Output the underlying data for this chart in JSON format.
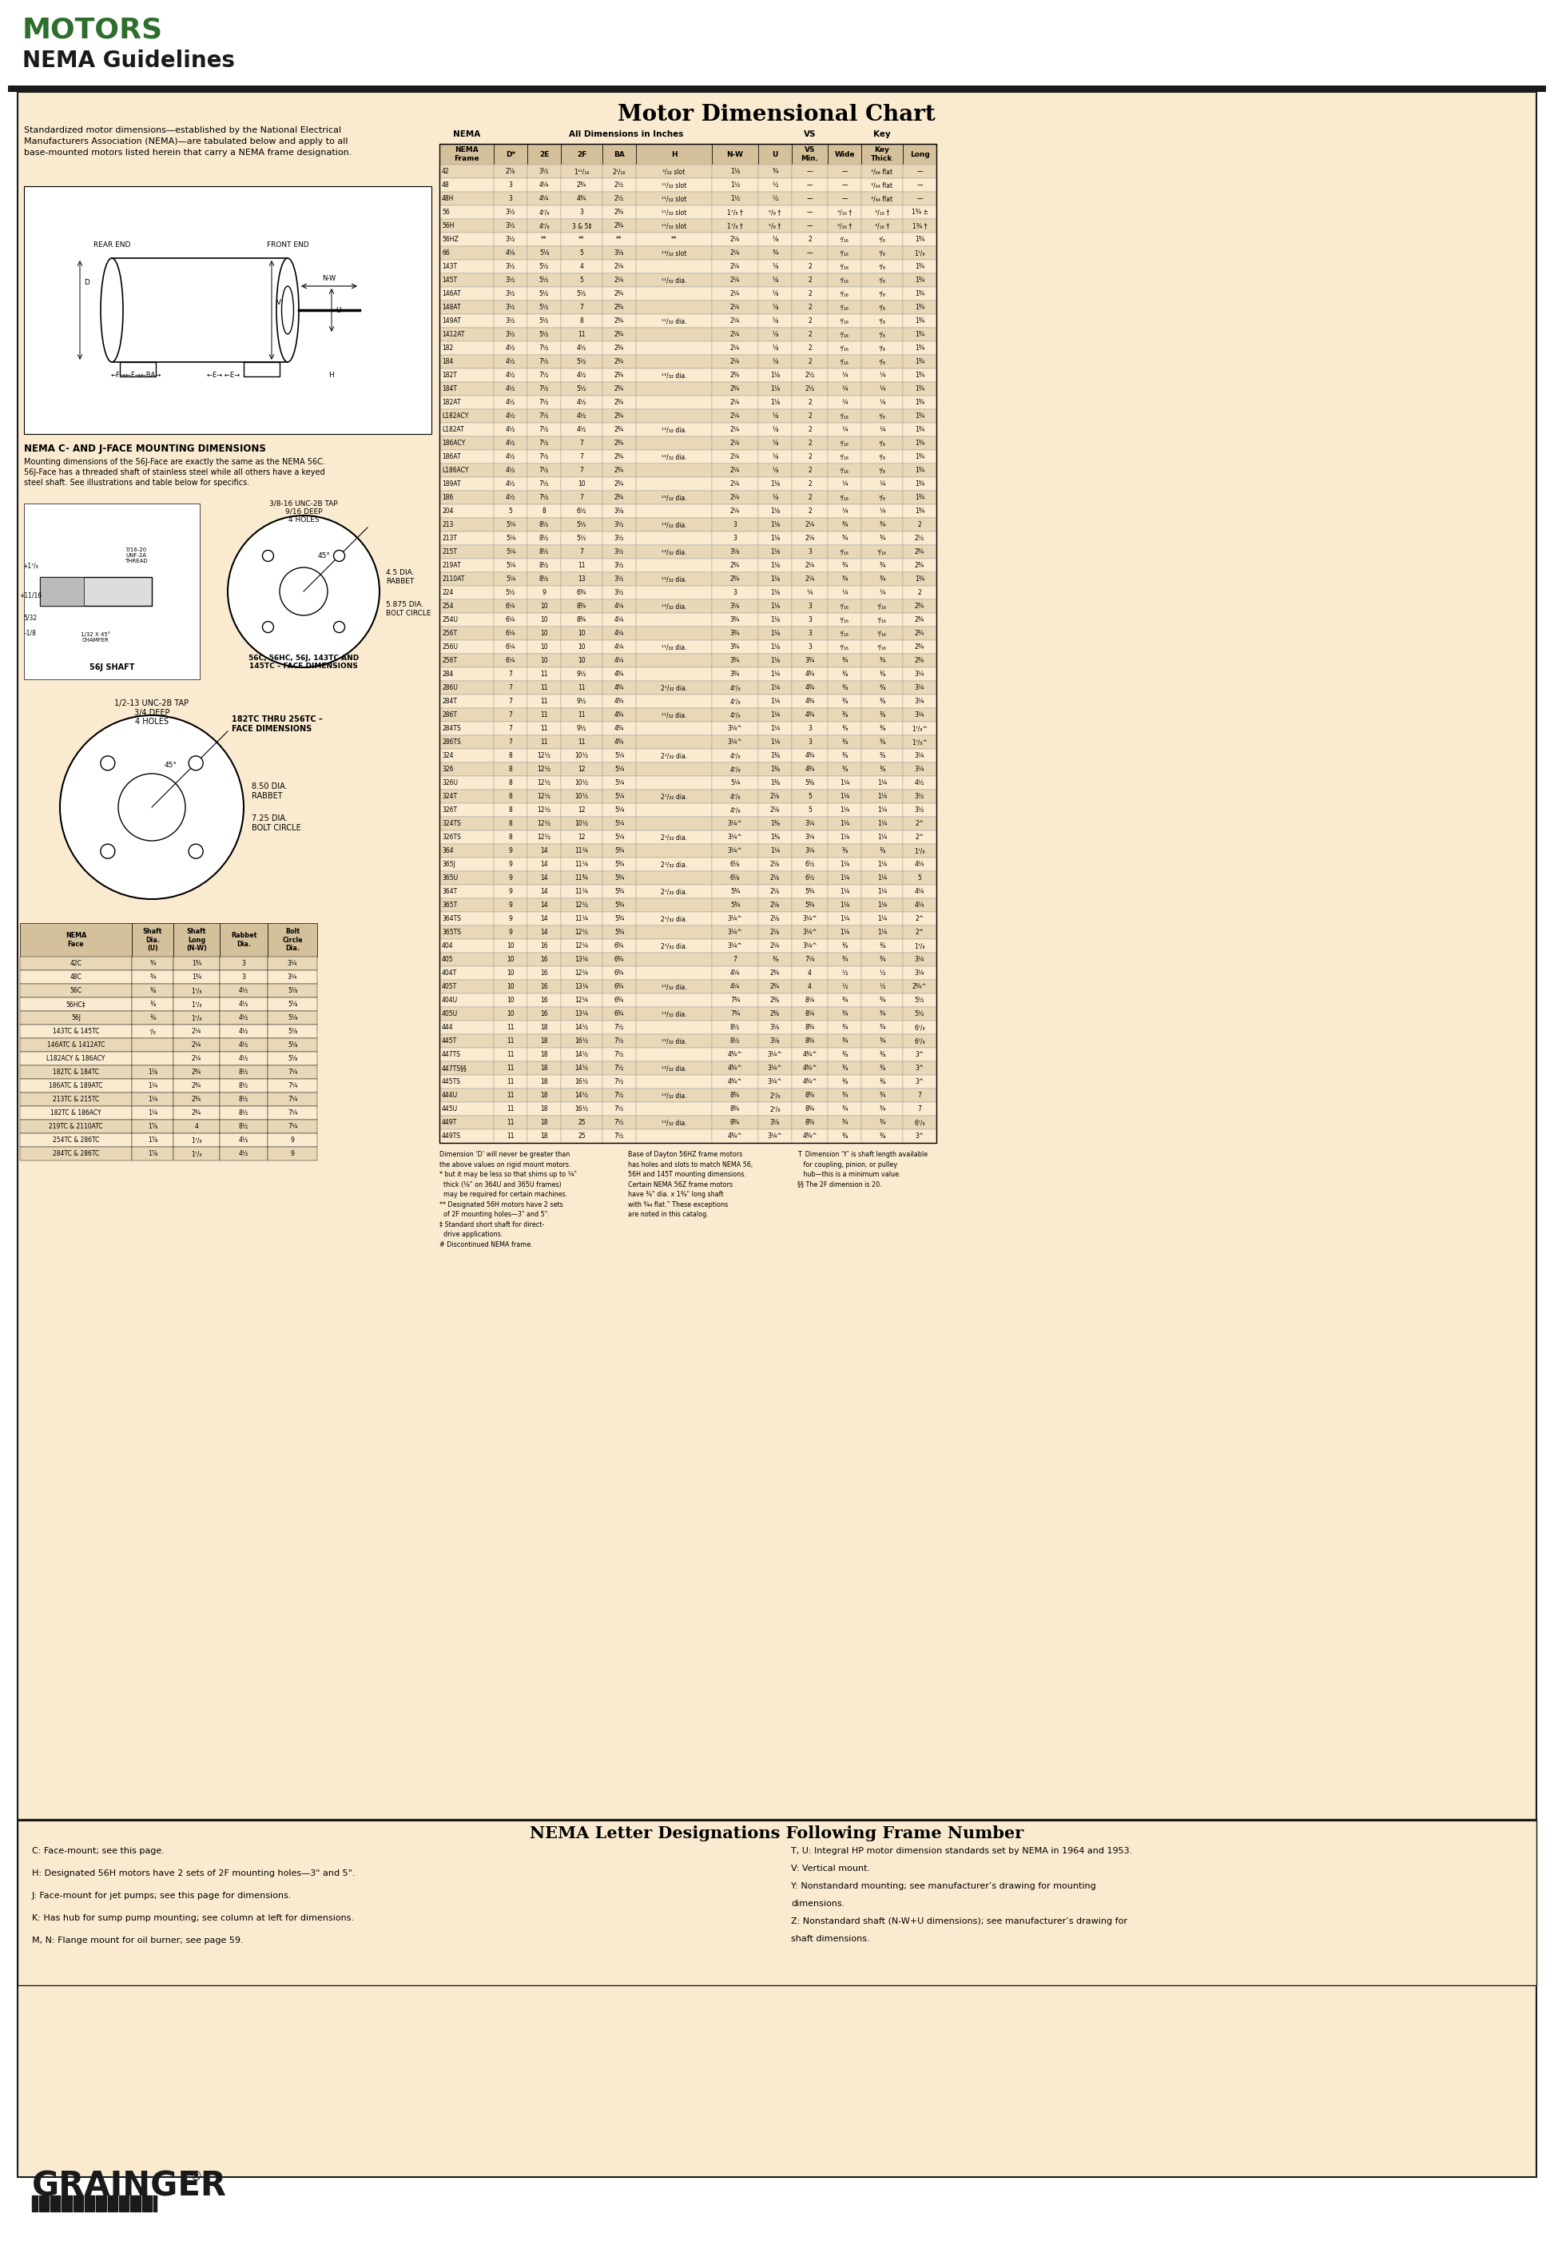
{
  "title_motors": "MOTORS",
  "title_nema": "NEMA Guidelines",
  "main_title": "Motor Dimensional Chart",
  "bg_color": "#faebd0",
  "header_bg_green": "#2d6e2d",
  "intro_text": "Standardized motor dimensions—established by the National Electrical\nManufacturers Association (NEMA)—are tabulated below and apply to all\nbase-mounted motors listed herein that carry a NEMA frame designation.",
  "nema_c_j_title": "NEMA C- AND J-FACE MOUNTING DIMENSIONS",
  "nema_c_j_text": "Mounting dimensions of the 56J-Face are exactly the same as the NEMA 56C.\n56J-Face has a threaded shaft of stainless steel while all others have a keyed\nsteel shaft. See illustrations and table below for specifics.",
  "face_dim_label": "56C, 56HC, 56J, 143TC AND\n145TC – FACE DIMENSIONS",
  "face_dim_label2": "182TC THRU 256TC –\nFACE DIMENSIONS",
  "table_rows": [
    [
      "42",
      "2⅞",
      "3½",
      "1¹¹/₁₆",
      "2¹/₁₆",
      "³/₃₂ slot",
      "1⅛",
      "¾",
      "—",
      "—",
      "³/₆₄ flat",
      "—"
    ],
    [
      "48",
      "3",
      "4¼",
      "2¾",
      "2½",
      "¹¹/₃₂ slot",
      "1½",
      "½",
      "—",
      "—",
      "³/₆₄ flat",
      "—"
    ],
    [
      "48H",
      "3",
      "4¼",
      "4¾",
      "2½",
      "¹¹/₃₂ slot",
      "1½",
      "½",
      "—",
      "—",
      "³/₆₄ flat",
      "—"
    ],
    [
      "56",
      "3½",
      "4⁷/₈",
      "3",
      "2¾",
      "¹¹/₃₂ slot",
      "1⁷/₈ †",
      "⁵/₈ †",
      "—",
      "³/₁₆ †",
      "³/₁₆ †",
      "1¾ ±"
    ],
    [
      "56H",
      "3½",
      "4⁷/₈",
      "3 & 5‡",
      "2¾",
      "¹¹/₃₂ slot",
      "1⁷/₈ †",
      "⁵/₈ †",
      "—",
      "³/₁₆ †",
      "³/₁₆ †",
      "1¾ †"
    ],
    [
      "56HZ",
      "3½",
      "**",
      "**",
      "**",
      "**",
      "2¼",
      "⅛",
      "2",
      "³/₁₆",
      "³/₈",
      "1¾"
    ],
    [
      "66",
      "4⅛",
      "5⅛",
      "5",
      "3⅛",
      "¹³/₃₂ slot",
      "2¼",
      "¾",
      "—",
      "³/₁₆",
      "³/₈",
      "1⁷/₈"
    ],
    [
      "143T",
      "3½",
      "5½",
      "4",
      "2¼",
      "",
      "2¼",
      "⅛",
      "2",
      "³/₁₆",
      "³/₈",
      "1¾"
    ],
    [
      "145T",
      "3½",
      "5½",
      "5",
      "2¼",
      "¹¹/₃₂ dia.",
      "2¼",
      "⅛",
      "2",
      "³/₁₆",
      "³/₈",
      "1¾"
    ],
    [
      "146AT",
      "3½",
      "5½",
      "5½",
      "2¾",
      "",
      "2¼",
      "⅛",
      "2",
      "³/₁₆",
      "³/₈",
      "1¾"
    ],
    [
      "148AT",
      "3½",
      "5½",
      "7",
      "2¾",
      "",
      "2¼",
      "⅛",
      "2",
      "³/₁₆",
      "³/₈",
      "1¾"
    ],
    [
      "149AT",
      "3½",
      "5½",
      "8",
      "2¾",
      "¹¹/₃₂ dia.",
      "2¼",
      "⅛",
      "2",
      "³/₁₆",
      "³/₈",
      "1¾"
    ],
    [
      "1412AT",
      "3½",
      "5½",
      "11",
      "2¾",
      "",
      "2¼",
      "⅛",
      "2",
      "³/₁₆",
      "³/₈",
      "1¾"
    ],
    [
      "182",
      "4½",
      "7½",
      "4½",
      "2¾",
      "",
      "2¼",
      "⅛",
      "2",
      "³/₁₆",
      "³/₈",
      "1¾"
    ],
    [
      "184",
      "4½",
      "7½",
      "5½",
      "2¾",
      "",
      "2¼",
      "⅛",
      "2",
      "³/₁₆",
      "³/₈",
      "1¾"
    ],
    [
      "182T",
      "4½",
      "7½",
      "4½",
      "2¾",
      "¹³/₃₂ dia.",
      "2¾",
      "1⅛",
      "2½",
      "¼",
      "¼",
      "1¾"
    ],
    [
      "184T",
      "4½",
      "7½",
      "5½",
      "2¾",
      "",
      "2¾",
      "1⅛",
      "2½",
      "¼",
      "¼",
      "1¾"
    ],
    [
      "182AT",
      "4½",
      "7½",
      "4½",
      "2¾",
      "",
      "2¼",
      "1⅛",
      "2",
      "¼",
      "¼",
      "1¾"
    ],
    [
      "L182ACY",
      "4½",
      "7½",
      "4½",
      "2¾",
      "",
      "2¼",
      "⅛",
      "2",
      "³/₁₆",
      "³/₈",
      "1¾"
    ],
    [
      "L182AT",
      "4½",
      "7½",
      "4½",
      "2¾",
      "¹³/₃₂ dia.",
      "2¼",
      "⅛",
      "2",
      "¼",
      "¼",
      "1¾"
    ],
    [
      "186ACY",
      "4½",
      "7½",
      "7",
      "2¾",
      "",
      "2¼",
      "⅛",
      "2",
      "³/₁₆",
      "³/₈",
      "1¾"
    ],
    [
      "186AT",
      "4½",
      "7½",
      "7",
      "2¾",
      "¹³/₃₂ dia.",
      "2¼",
      "⅛",
      "2",
      "³/₁₆",
      "³/₈",
      "1¾"
    ],
    [
      "L186ACY",
      "4½",
      "7½",
      "7",
      "2¾",
      "",
      "2¼",
      "⅛",
      "2",
      "³/₁₆",
      "³/₈",
      "1¾"
    ],
    [
      "189AT",
      "4½",
      "7½",
      "10",
      "2¾",
      "",
      "2¼",
      "1⅛",
      "2",
      "¼",
      "¼",
      "1¾"
    ],
    [
      "186",
      "4½",
      "7½",
      "7",
      "2¾",
      "¹³/₃₂ dia.",
      "2¼",
      "⅛",
      "2",
      "³/₁₆",
      "³/₈",
      "1¾"
    ],
    [
      "204",
      "5",
      "8",
      "6½",
      "3⅛",
      "",
      "2¼",
      "1⅛",
      "2",
      "¼",
      "¼",
      "1¾"
    ],
    [
      "213",
      "5¼",
      "8½",
      "5½",
      "3½",
      "¹³/₃₂ dia.",
      "3",
      "1⅛",
      "2¼",
      "¾",
      "¾",
      "2"
    ],
    [
      "213T",
      "5¼",
      "8½",
      "5½",
      "3½",
      "",
      "3",
      "1⅛",
      "2¼",
      "¾",
      "¾",
      "2½"
    ],
    [
      "215T",
      "5¼",
      "8½",
      "7",
      "3½",
      "¹³/₃₂ dia.",
      "3⅛",
      "1⅛",
      "3",
      "³/₁₆",
      "³/₁₆",
      "2¾"
    ],
    [
      "219AT",
      "5¼",
      "8½",
      "11",
      "3½",
      "",
      "2¾",
      "1⅛",
      "2¼",
      "¾",
      "¾",
      "2¾"
    ],
    [
      "2110AT",
      "5¼",
      "8½",
      "13",
      "3½",
      "¹³/₃₂ dia.",
      "2¾",
      "1⅛",
      "2¼",
      "¾",
      "¾",
      "1¾"
    ],
    [
      "224",
      "5½",
      "9",
      "6¾",
      "3½",
      "",
      "3",
      "1⅛",
      "¼",
      "¼",
      "¼",
      "2"
    ],
    [
      "254",
      "6¼",
      "10",
      "8¾",
      "4¼",
      "¹³/₃₂ dia.",
      "3⅛",
      "1⅛",
      "3",
      "³/₁₆",
      "³/₁₆",
      "2¾"
    ],
    [
      "254U",
      "6¼",
      "10",
      "8¾",
      "4¼",
      "",
      "3¾",
      "1⅛",
      "3",
      "³/₁₆",
      "³/₁₆",
      "2¾"
    ],
    [
      "256T",
      "6¼",
      "10",
      "10",
      "4¼",
      "",
      "3¾",
      "1⅛",
      "3",
      "³/₁₆",
      "³/₁₆",
      "2¾"
    ],
    [
      "256U",
      "6¼",
      "10",
      "10",
      "4¼",
      "¹¹/₃₂ dia.",
      "3¾",
      "1⅛",
      "3",
      "³/₁₆",
      "³/₁₆",
      "2¾"
    ],
    [
      "256T",
      "6¼",
      "10",
      "10",
      "4¼",
      "",
      "3¾",
      "1⅛",
      "3¾",
      "¾",
      "¾",
      "2¾"
    ],
    [
      "284",
      "7",
      "11",
      "9½",
      "4¾",
      "",
      "3¾",
      "1¼",
      "4¾",
      "⅜",
      "⅜",
      "3¼"
    ],
    [
      "286U",
      "7",
      "11",
      "11",
      "4¾",
      "2¹/₃₂ dia.",
      "4⁷/₈",
      "1¼",
      "4¾",
      "⅜",
      "⅜",
      "3¼"
    ],
    [
      "284T",
      "7",
      "11",
      "9½",
      "4¾",
      "",
      "4⁷/₈",
      "1¼",
      "4¾",
      "⅜",
      "⅜",
      "3¼"
    ],
    [
      "286T",
      "7",
      "11",
      "11",
      "4¾",
      "¹¹/₃₂ dia.",
      "4⁷/₈",
      "1¼",
      "4¾",
      "⅜",
      "⅜",
      "3¼"
    ],
    [
      "284TS",
      "7",
      "11",
      "9½",
      "4¾",
      "",
      "3¼^",
      "1¼",
      "3",
      "⅜",
      "⅜",
      "1⁷/₈^"
    ],
    [
      "286TS",
      "7",
      "11",
      "11",
      "4¾",
      "",
      "3¼^",
      "1¼",
      "3",
      "⅜",
      "⅜",
      "1⁷/₈^"
    ],
    [
      "324",
      "8",
      "12½",
      "10½",
      "5¼",
      "2¹/₃₂ dia.",
      "4⁷/₈",
      "1⅜",
      "4¾",
      "⅜",
      "⅜",
      "3¼"
    ],
    [
      "326",
      "8",
      "12½",
      "12",
      "5¼",
      "",
      "4⁷/₈",
      "1⅜",
      "4¾",
      "⅜",
      "⅜",
      "3¼"
    ],
    [
      "326U",
      "8",
      "12½",
      "10½",
      "5¼",
      "",
      "5¼",
      "1⅜",
      "5⅜",
      "1¼",
      "1¼",
      "4½"
    ],
    [
      "324T",
      "8",
      "12½",
      "10½",
      "5¼",
      "2¹/₃₂ dia.",
      "4⁷/₈",
      "2⅛",
      "5",
      "1¼",
      "1¼",
      "3½"
    ],
    [
      "326T",
      "8",
      "12½",
      "12",
      "5¼",
      "",
      "4⁷/₈",
      "2⅛",
      "5",
      "1¼",
      "1¼",
      "3½"
    ],
    [
      "324TS",
      "8",
      "12½",
      "10½",
      "5¼",
      "",
      "3¼^",
      "1⅜",
      "3¼",
      "1¼",
      "1¼",
      "2^"
    ],
    [
      "326TS",
      "8",
      "12½",
      "12",
      "5¼",
      "2¹/₃₂ dia.",
      "3¼^",
      "1⅜",
      "3¼",
      "1¼",
      "1¼",
      "2^"
    ],
    [
      "364",
      "9",
      "14",
      "11¼",
      "5¾",
      "",
      "3¼^",
      "1¼",
      "3¼",
      "⅜",
      "⅜",
      "1⁷/₈"
    ],
    [
      "365J",
      "9",
      "14",
      "11¼",
      "5¾",
      "2¹/₃₂ dia.",
      "6⅛",
      "2⅛",
      "6½",
      "1¼",
      "1¼",
      "4¼"
    ],
    [
      "365U",
      "9",
      "14",
      "11¾",
      "5¾",
      "",
      "6⅛",
      "2⅛",
      "6½",
      "1¼",
      "1¼",
      "5"
    ],
    [
      "364T",
      "9",
      "14",
      "11¼",
      "5¾",
      "2¹/₃₂ dia.",
      "5¾",
      "2⅛",
      "5¾",
      "1¼",
      "1¼",
      "4¼"
    ],
    [
      "365T",
      "9",
      "14",
      "12½",
      "5¾",
      "",
      "5¾",
      "2⅛",
      "5¾",
      "1¼",
      "1¼",
      "4¼"
    ],
    [
      "364TS",
      "9",
      "14",
      "11¼",
      "5¾",
      "2¹/₃₂ dia.",
      "3¼^",
      "2⅛",
      "3¼^",
      "1¼",
      "1¼",
      "2^"
    ],
    [
      "365TS",
      "9",
      "14",
      "12½",
      "5¾",
      "",
      "3¼^",
      "2⅛",
      "3¼^",
      "1¼",
      "1¼",
      "2^"
    ],
    [
      "404",
      "10",
      "16",
      "12¼",
      "6¾",
      "2¹/₃₂ dia.",
      "3¼^",
      "2¼",
      "3¼^",
      "⅜",
      "⅜",
      "1⁷/₈"
    ],
    [
      "405",
      "10",
      "16",
      "13¼",
      "6¾",
      "",
      "7",
      "⅜",
      "7¼",
      "¾",
      "¾",
      "3¼"
    ],
    [
      "404T",
      "10",
      "16",
      "12¼",
      "6¾",
      "",
      "4¼",
      "2¾",
      "4",
      "½",
      "½",
      "3¼"
    ],
    [
      "405T",
      "10",
      "16",
      "13¼",
      "6¾",
      "¹³/₃₂ dia.",
      "4¼",
      "2¾",
      "4",
      "½",
      "½",
      "2¾^"
    ],
    [
      "404U",
      "10",
      "16",
      "12¼",
      "6¾",
      "",
      "7¾",
      "2⅜",
      "8¼",
      "¾",
      "¾",
      "5½"
    ],
    [
      "405U",
      "10",
      "16",
      "13¼",
      "6¾",
      "¹³/₃₂ dia.",
      "7¾",
      "2⅜",
      "8¼",
      "¾",
      "¾",
      "5½"
    ],
    [
      "444",
      "11",
      "18",
      "14½",
      "7½",
      "",
      "8½",
      "3⅛",
      "8¾",
      "¾",
      "¾",
      "6⁷/₈"
    ],
    [
      "445T",
      "11",
      "18",
      "16½",
      "7½",
      "¹³/₃₂ dia.",
      "8½",
      "3⅛",
      "8¾",
      "¾",
      "¾",
      "6⁷/₈"
    ],
    [
      "447TS",
      "11",
      "18",
      "14½",
      "7½",
      "",
      "4¾^",
      "3¼^",
      "4¾^",
      "⅜",
      "⅜",
      "3^"
    ],
    [
      "447TS§§",
      "11",
      "18",
      "14½",
      "7½",
      "¹³/₃₂ dia.",
      "4¾^",
      "3¼^",
      "4¾^",
      "⅜",
      "⅜",
      "3^"
    ],
    [
      "445TS",
      "11",
      "18",
      "16½",
      "7½",
      "",
      "4¾^",
      "3¼^",
      "4¾^",
      "⅜",
      "⅜",
      "3^"
    ],
    [
      "444U",
      "11",
      "18",
      "14½",
      "7½",
      "¹³/₃₂ dia.",
      "8¾",
      "2⁷/₈",
      "8¾",
      "¾",
      "¾",
      "7"
    ],
    [
      "445U",
      "11",
      "18",
      "16½",
      "7½",
      "",
      "8¾",
      "2⁷/₈",
      "8¾",
      "¾",
      "¾",
      "7"
    ],
    [
      "449T",
      "11",
      "18",
      "25",
      "7½",
      "¹³/₃₂ dia.",
      "8¾",
      "3⅛",
      "8¾",
      "¾",
      "¾",
      "6⁷/₈"
    ],
    [
      "449TS",
      "11",
      "18",
      "25",
      "7½",
      "",
      "4¾^",
      "3¼^",
      "4¾^",
      "⅜",
      "⅜",
      "3^"
    ]
  ],
  "shaft_table_headers": [
    "NEMA\nFace",
    "Shaft\nDia.\n(U)",
    "Shaft\nLong\n(N-W)",
    "Rabbet\nDia.",
    "Bolt\nCircle\nDia."
  ],
  "shaft_table_rows": [
    [
      "42C",
      "¾",
      "1¾",
      "3",
      "3¼"
    ],
    [
      "48C",
      "¾",
      "1¾",
      "3",
      "3¼"
    ],
    [
      "56C",
      "⅜",
      "1⁷/₈",
      "4½",
      "5⅛"
    ],
    [
      "56HC‡",
      "⅜",
      "1⁷/₈",
      "4½",
      "5⅛"
    ],
    [
      "56J",
      "⅜",
      "1⁷/₈",
      "4½",
      "5⅛"
    ],
    [
      "143TC & 145TC",
      "⁷/₈",
      "2¼",
      "4½",
      "5⅛"
    ],
    [
      "146ATC & 1412ATC",
      "",
      "2¼",
      "4½",
      "5⅛"
    ],
    [
      "L182ACY & 186ACY",
      "",
      "2¼",
      "4½",
      "5⅛"
    ],
    [
      "182TC & 184TC",
      "1⅛",
      "2¾",
      "8½",
      "7¼"
    ],
    [
      "186ATC & 189ATC",
      "1¼",
      "2¾",
      "8½",
      "7¼"
    ],
    [
      "213TC & 215TC",
      "1¼",
      "2¾",
      "8½",
      "7¼"
    ],
    [
      "182TC & 186ACY",
      "1¼",
      "2¾",
      "8½",
      "7¼"
    ],
    [
      "219TC & 2110ATC",
      "1⅞",
      "4",
      "8½",
      "7¼"
    ],
    [
      "254TC & 286TC",
      "1⅞",
      "1⁷/₈",
      "4½",
      "9"
    ],
    [
      "284TC & 286TC",
      "1⅞",
      "1⁷/₈",
      "4½",
      "9"
    ]
  ],
  "footnotes_left": [
    "Dimension ‘D’ will never be greater than",
    "the above values on rigid mount motors.",
    "* but it may be less so that shims up to ¼\"",
    "  thick (⅛\" on 364U and 365U frames)",
    "  may be required for certain machines.",
    "** Designated 56H motors have 2 sets",
    "  of 2F mounting holes—3\" and 5\".",
    "‡ Standard short shaft for direct-",
    "  drive applications.",
    "# Discontinued NEMA frame."
  ],
  "footnotes_right_col1": [
    "Base of Dayton 56HZ frame motors",
    "has holes and slots to match NEMA 56,",
    "56H and 145T mounting dimensions.",
    "Certain NEMA 56Z frame motors",
    "have ⅜\" dia. x 1⅜\" long shaft",
    "with ¾₄ flat.” These exceptions",
    "are noted in this catalog."
  ],
  "footnotes_right_col2": [
    "T  Dimension ‘Y’ is shaft length available",
    "   for coupling, pinion, or pulley",
    "   hub—this is a minimum value.",
    "§§ The 2F dimension is 20."
  ],
  "bottom_section_title": "NEMA Letter Designations Following Frame Number",
  "bottom_left": [
    "C: Face-mount; see this page.",
    "H: Designated 56H motors have 2 sets of 2F mounting holes—3\" and 5\".",
    "J: Face-mount for jet pumps; see this page for dimensions.",
    "K: Has hub for sump pump mounting; see column at left for dimensions.",
    "M, N: Flange mount for oil burner; see page 59."
  ],
  "bottom_right": [
    "T, U: Integral HP motor dimension standards set by NEMA in 1964 and 1953.",
    "V: Vertical mount.",
    "Y: Nonstandard mounting; see manufacturer’s drawing for mounting",
    "dimensions.",
    "Z: Nonstandard shaft (N-W+U dimensions); see manufacturer’s drawing for",
    "shaft dimensions."
  ]
}
